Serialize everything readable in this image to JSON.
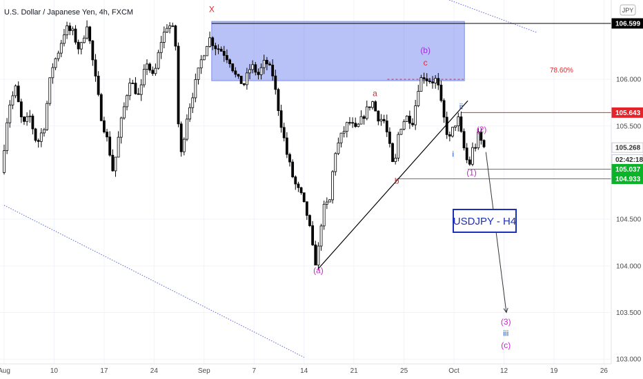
{
  "header": {
    "symbol_title": "U.S. Dollar / Japanese Yen, 4h, FXCM",
    "currency_badge": "JPY"
  },
  "chart_label": "USDJPY - H4",
  "fib_label": "78.60%",
  "chart_data": {
    "type": "candlestick",
    "x_axis_labels": [
      "Aug",
      "10",
      "17",
      "24",
      "Sep",
      "7",
      "14",
      "21",
      "25",
      "Oct",
      "12",
      "19",
      "26"
    ],
    "y_axis_labels": [
      "106.000",
      "105.500",
      "104.500",
      "104.000",
      "103.500",
      "103.000"
    ],
    "ylim": [
      102.95,
      106.85
    ],
    "price_tags": [
      {
        "name": "top-resistance",
        "value": 106.599,
        "text": "106.599",
        "color": "#000000",
        "text_color": "#ffffff"
      },
      {
        "name": "red-level",
        "value": 105.643,
        "text": "105.643",
        "color": "#e3242b",
        "text_color": "#ffffff"
      },
      {
        "name": "current-price",
        "value": 105.268,
        "text": "105.268",
        "color": "#ffffff",
        "text_color": "#333333"
      },
      {
        "name": "countdown",
        "value": 105.14,
        "text": "02:42:18",
        "color": "#ffffff",
        "text_color": "#333333"
      },
      {
        "name": "green-level-upper",
        "value": 105.037,
        "text": "105.037",
        "color": "#0bb329",
        "text_color": "#ffffff"
      },
      {
        "name": "green-level-lower",
        "value": 104.933,
        "text": "104.933",
        "color": "#0bb329",
        "text_color": "#ffffff"
      }
    ],
    "wave_labels": [
      {
        "text": "X",
        "t": 43.6,
        "p": 106.72,
        "color": "#e3242b"
      },
      {
        "text": "a",
        "t": 77.9,
        "p": 105.82,
        "color": "#e3242b"
      },
      {
        "text": "b",
        "t": 82.5,
        "p": 104.88,
        "color": "#e3242b"
      },
      {
        "text": "(a)",
        "t": 66.0,
        "p": 103.92,
        "color": "#d11dd1"
      },
      {
        "text": "(b)",
        "t": 88.5,
        "p": 106.28,
        "color": "#9b30d9"
      },
      {
        "text": "c",
        "t": 88.5,
        "p": 106.15,
        "color": "#e3242b"
      },
      {
        "text": "ii",
        "t": 96.0,
        "p": 105.68,
        "color": "#2458d6"
      },
      {
        "text": "i",
        "t": 94.3,
        "p": 105.17,
        "color": "#2458d6"
      },
      {
        "text": "(1)",
        "t": 98.2,
        "p": 104.97,
        "color": "#d11dd1"
      },
      {
        "text": "(2)",
        "t": 100.3,
        "p": 105.43,
        "color": "#d11dd1"
      },
      {
        "text": "(3)",
        "t": 105.4,
        "p": 103.37,
        "color": "#d11dd1"
      },
      {
        "text": "iii",
        "t": 105.4,
        "p": 103.25,
        "color": "#2458d6"
      },
      {
        "text": "(c)",
        "t": 105.4,
        "p": 103.12,
        "color": "#d11dd1"
      }
    ],
    "price_path": [
      [
        0,
        105.0
      ],
      [
        1.5,
        105.7
      ],
      [
        3,
        105.9
      ],
      [
        4.5,
        105.5
      ],
      [
        6,
        105.6
      ],
      [
        7.5,
        105.3
      ],
      [
        9,
        105.5
      ],
      [
        10.5,
        106.1
      ],
      [
        12,
        106.3
      ],
      [
        13.5,
        106.55
      ],
      [
        15,
        106.5
      ],
      [
        16.5,
        106.3
      ],
      [
        18,
        106.6
      ],
      [
        19.5,
        106.1
      ],
      [
        21,
        105.6
      ],
      [
        22.5,
        105.3
      ],
      [
        23.5,
        105.0
      ],
      [
        25,
        105.5
      ],
      [
        27,
        106.0
      ],
      [
        29,
        105.8
      ],
      [
        30.5,
        106.2
      ],
      [
        32,
        106.0
      ],
      [
        33.5,
        106.4
      ],
      [
        35,
        106.6
      ],
      [
        36.5,
        106.5
      ],
      [
        37.5,
        105.1
      ],
      [
        39,
        105.6
      ],
      [
        40.5,
        105.9
      ],
      [
        42,
        106.2
      ],
      [
        43.6,
        106.45
      ],
      [
        45,
        106.35
      ],
      [
        46.5,
        106.3
      ],
      [
        48,
        106.2
      ],
      [
        49.5,
        106.0
      ],
      [
        51,
        105.95
      ],
      [
        52.5,
        106.15
      ],
      [
        54,
        106.05
      ],
      [
        55.5,
        106.2
      ],
      [
        57,
        106.05
      ],
      [
        58.5,
        105.6
      ],
      [
        60,
        105.2
      ],
      [
        61.5,
        104.9
      ],
      [
        63,
        104.75
      ],
      [
        64.5,
        104.5
      ],
      [
        65.5,
        104.15
      ],
      [
        66.2,
        104.0
      ],
      [
        67.5,
        104.6
      ],
      [
        69,
        104.7
      ],
      [
        70,
        105.2
      ],
      [
        71.5,
        105.4
      ],
      [
        73,
        105.55
      ],
      [
        74.5,
        105.45
      ],
      [
        76,
        105.6
      ],
      [
        77.9,
        105.77
      ],
      [
        79,
        105.6
      ],
      [
        80.5,
        105.55
      ],
      [
        81.5,
        105.3
      ],
      [
        82.5,
        105.0
      ],
      [
        83.5,
        105.45
      ],
      [
        85,
        105.6
      ],
      [
        86.5,
        105.55
      ],
      [
        87.5,
        105.9
      ],
      [
        88.5,
        106.05
      ],
      [
        89.5,
        106.0
      ],
      [
        90.5,
        105.98
      ],
      [
        91.5,
        106.0
      ],
      [
        92.5,
        105.7
      ],
      [
        93.5,
        105.45
      ],
      [
        94.3,
        105.35
      ],
      [
        95,
        105.5
      ],
      [
        96,
        105.57
      ],
      [
        97,
        105.3
      ],
      [
        98.2,
        105.05
      ],
      [
        99,
        105.25
      ],
      [
        99.8,
        105.3
      ],
      [
        100.3,
        105.42
      ],
      [
        101.2,
        105.27
      ]
    ],
    "supply_zone": {
      "t_start": 43.6,
      "t_end": 96.7,
      "p_low": 105.985,
      "p_high": 106.62
    },
    "fib_level": {
      "t_start": 80.5,
      "t_end": 96.5,
      "p": 106.0
    },
    "trendline": [
      [
        66.0,
        103.97
      ],
      [
        97.4,
        105.77
      ]
    ],
    "projection": [
      [
        101.2,
        105.22
      ],
      [
        105.5,
        103.5
      ]
    ],
    "channel_upper": [
      [
        93.5,
        106.85
      ],
      [
        112,
        106.5
      ]
    ],
    "channel_lower": [
      [
        0,
        104.65
      ],
      [
        63,
        103.02
      ]
    ],
    "horizontal_levels": [
      {
        "p": 106.599,
        "t_start": 43.6,
        "color": "#000000"
      },
      {
        "p": 105.643,
        "t_start": 96.0,
        "color": "#e3242b"
      },
      {
        "p": 105.037,
        "t_start": 97.4,
        "color": "#0bb329"
      },
      {
        "p": 104.933,
        "t_start": 82.5,
        "color": "#0bb329"
      }
    ]
  }
}
